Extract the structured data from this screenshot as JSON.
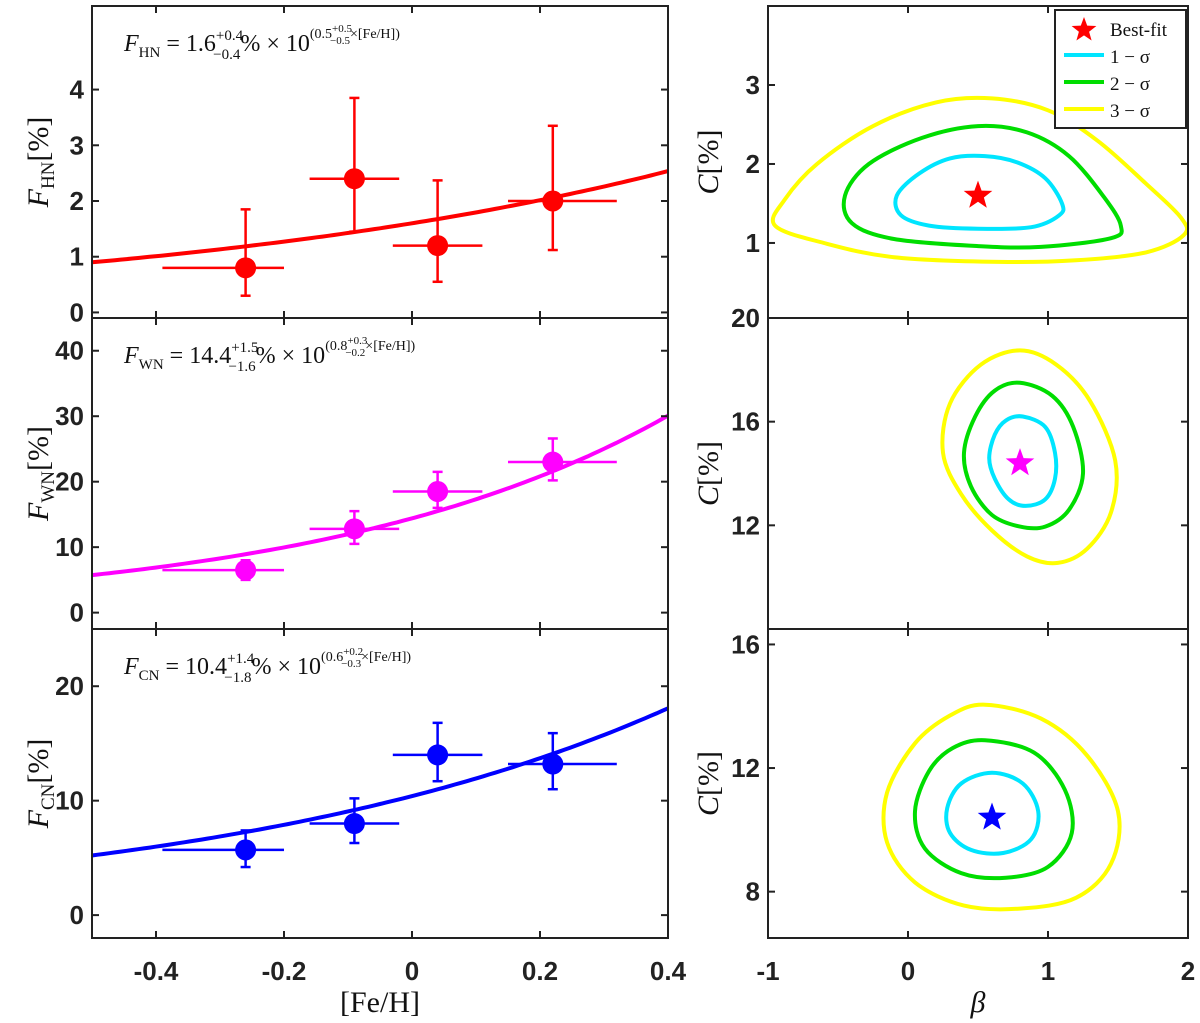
{
  "colors": {
    "red": "#ff0000",
    "magenta": "#ff00ff",
    "blue": "#0000ff",
    "cyan": "#00e5ff",
    "green": "#00dd00",
    "yellow": "#ffff00",
    "axis": "#222222"
  },
  "chart_data": [
    {
      "type": "scatter",
      "id": "hn_fraction",
      "color": "#ff0000",
      "xlabel": "[Fe/H]",
      "ylabel": "F_HN[%]",
      "ylabel_main": "F",
      "ylabel_sub": "HN",
      "ylabel_unit": "[%]",
      "xlim": [
        -0.5,
        0.4
      ],
      "ylim": [
        -0.1,
        5.5
      ],
      "xticks": [
        -0.4,
        -0.2,
        0,
        0.2,
        0.4
      ],
      "yticks": [
        0,
        1,
        2,
        3,
        4
      ],
      "annotation": {
        "main": "F",
        "sub": "HN",
        "eq": " = 1.6",
        "sup1": "+0.4",
        "sub1": "−0.4",
        "mid": "% × 10",
        "sup2": "(0.5",
        "supsup": "+0.5",
        "supsub": "−0.5",
        "tail": "×[Fe/H])"
      },
      "fit": {
        "C": 1.6,
        "beta": 0.5
      },
      "points": [
        {
          "x": -0.26,
          "y": 0.8,
          "xlo": -0.39,
          "xhi": -0.2,
          "ylo": 0.3,
          "yhi": 1.85
        },
        {
          "x": -0.09,
          "y": 2.4,
          "xlo": -0.16,
          "xhi": -0.02,
          "ylo": 1.45,
          "yhi": 3.85
        },
        {
          "x": 0.04,
          "y": 1.2,
          "xlo": -0.03,
          "xhi": 0.11,
          "ylo": 0.55,
          "yhi": 2.37
        },
        {
          "x": 0.22,
          "y": 2.0,
          "xlo": 0.15,
          "xhi": 0.32,
          "ylo": 1.12,
          "yhi": 3.35
        }
      ]
    },
    {
      "type": "scatter",
      "id": "wn_fraction",
      "color": "#ff00ff",
      "xlabel": "[Fe/H]",
      "ylabel": "F_WN[%]",
      "ylabel_main": "F",
      "ylabel_sub": "WN",
      "ylabel_unit": "[%]",
      "xlim": [
        -0.5,
        0.4
      ],
      "ylim": [
        -2.5,
        45
      ],
      "xticks": [
        -0.4,
        -0.2,
        0,
        0.2,
        0.4
      ],
      "yticks": [
        0,
        10,
        20,
        30,
        40
      ],
      "annotation": {
        "main": "F",
        "sub": "WN",
        "eq": " = 14.4",
        "sup1": "+1.5",
        "sub1": "−1.6",
        "mid": "% × 10",
        "sup2": "(0.8",
        "supsup": "+0.3",
        "supsub": "−0.2",
        "tail": "×[Fe/H])"
      },
      "fit": {
        "C": 14.4,
        "beta": 0.8
      },
      "points": [
        {
          "x": -0.26,
          "y": 6.5,
          "xlo": -0.39,
          "xhi": -0.2,
          "ylo": 5.0,
          "yhi": 8.0
        },
        {
          "x": -0.09,
          "y": 12.8,
          "xlo": -0.16,
          "xhi": -0.02,
          "ylo": 10.5,
          "yhi": 15.5
        },
        {
          "x": 0.04,
          "y": 18.5,
          "xlo": -0.03,
          "xhi": 0.11,
          "ylo": 16.0,
          "yhi": 21.5
        },
        {
          "x": 0.22,
          "y": 23.0,
          "xlo": 0.15,
          "xhi": 0.32,
          "ylo": 20.2,
          "yhi": 26.6
        }
      ]
    },
    {
      "type": "scatter",
      "id": "cn_fraction",
      "color": "#0000ff",
      "xlabel": "[Fe/H]",
      "ylabel": "F_CN[%]",
      "ylabel_main": "F",
      "ylabel_sub": "CN",
      "ylabel_unit": "[%]",
      "xlim": [
        -0.5,
        0.4
      ],
      "ylim": [
        -2.0,
        25
      ],
      "xticks": [
        -0.4,
        -0.2,
        0,
        0.2,
        0.4
      ],
      "xticklabels": [
        "-0.4",
        "-0.2",
        "0",
        "0.2",
        "0.4"
      ],
      "yticks": [
        0,
        10,
        20
      ],
      "annotation": {
        "main": "F",
        "sub": "CN",
        "eq": " = 10.4",
        "sup1": "+1.4",
        "sub1": "−1.8",
        "mid": "% × 10",
        "sup2": "(0.6",
        "supsup": "+0.2",
        "supsub": "−0.3",
        "tail": "×[Fe/H])"
      },
      "fit": {
        "C": 10.4,
        "beta": 0.6
      },
      "points": [
        {
          "x": -0.26,
          "y": 5.7,
          "xlo": -0.39,
          "xhi": -0.2,
          "ylo": 4.2,
          "yhi": 7.4
        },
        {
          "x": -0.09,
          "y": 8.0,
          "xlo": -0.16,
          "xhi": -0.02,
          "ylo": 6.3,
          "yhi": 10.2
        },
        {
          "x": 0.04,
          "y": 14.0,
          "xlo": -0.03,
          "xhi": 0.11,
          "ylo": 11.7,
          "yhi": 16.8
        },
        {
          "x": 0.22,
          "y": 13.2,
          "xlo": 0.15,
          "xhi": 0.32,
          "ylo": 11.0,
          "yhi": 15.9
        }
      ]
    },
    {
      "type": "contour",
      "id": "hn_confidence",
      "xlabel": "β",
      "ylabel": "C[%]",
      "xlim": [
        -1,
        2
      ],
      "ylim": [
        0.05,
        4.0
      ],
      "yticks": [
        1,
        2,
        3
      ],
      "best_fit": {
        "beta": 0.5,
        "C": 1.6,
        "color": "#ff0000"
      },
      "contours": [
        {
          "level": "1-σ",
          "color": "#00e5ff",
          "points": [
            [
              0.5,
              1.18
            ],
            [
              0.88,
              1.2
            ],
            [
              1.08,
              1.35
            ],
            [
              1.1,
              1.5
            ],
            [
              0.98,
              1.82
            ],
            [
              0.78,
              2.02
            ],
            [
              0.55,
              2.1
            ],
            [
              0.3,
              2.07
            ],
            [
              0.08,
              1.88
            ],
            [
              -0.08,
              1.6
            ],
            [
              -0.05,
              1.35
            ],
            [
              0.15,
              1.22
            ]
          ]
        },
        {
          "level": "2-σ",
          "color": "#00dd00",
          "points": [
            [
              0.5,
              0.96
            ],
            [
              0.95,
              0.95
            ],
            [
              1.45,
              1.06
            ],
            [
              1.52,
              1.22
            ],
            [
              1.4,
              1.58
            ],
            [
              1.15,
              2.1
            ],
            [
              0.85,
              2.4
            ],
            [
              0.5,
              2.48
            ],
            [
              0.1,
              2.33
            ],
            [
              -0.28,
              2.0
            ],
            [
              -0.45,
              1.6
            ],
            [
              -0.4,
              1.25
            ],
            [
              -0.1,
              1.05
            ]
          ]
        },
        {
          "level": "3-σ",
          "color": "#ffff00",
          "points": [
            [
              0.65,
              0.76
            ],
            [
              1.2,
              0.78
            ],
            [
              1.7,
              0.88
            ],
            [
              1.97,
              1.1
            ],
            [
              1.95,
              1.32
            ],
            [
              1.7,
              1.75
            ],
            [
              1.35,
              2.3
            ],
            [
              1.0,
              2.68
            ],
            [
              0.6,
              2.83
            ],
            [
              0.2,
              2.78
            ],
            [
              -0.25,
              2.48
            ],
            [
              -0.65,
              2.0
            ],
            [
              -0.88,
              1.55
            ],
            [
              -0.95,
              1.22
            ],
            [
              -0.6,
              1.0
            ],
            [
              -0.1,
              0.82
            ]
          ]
        }
      ]
    },
    {
      "type": "contour",
      "id": "wn_confidence",
      "xlabel": "β",
      "ylabel": "C[%]",
      "xlim": [
        -1,
        2
      ],
      "ylim": [
        8.0,
        20.0
      ],
      "yticks": [
        12,
        16,
        20
      ],
      "best_fit": {
        "beta": 0.8,
        "C": 14.4,
        "color": "#ff00ff"
      },
      "contours": [
        {
          "level": "1-σ",
          "color": "#00e5ff",
          "points": [
            [
              0.82,
              16.2
            ],
            [
              0.98,
              15.8
            ],
            [
              1.05,
              14.8
            ],
            [
              1.05,
              13.8
            ],
            [
              0.98,
              13.0
            ],
            [
              0.84,
              12.75
            ],
            [
              0.72,
              13.0
            ],
            [
              0.62,
              13.8
            ],
            [
              0.58,
              14.6
            ],
            [
              0.62,
              15.5
            ],
            [
              0.7,
              16.05
            ]
          ]
        },
        {
          "level": "2-σ",
          "color": "#00dd00",
          "points": [
            [
              0.8,
              17.5
            ],
            [
              1.03,
              17.0
            ],
            [
              1.18,
              15.8
            ],
            [
              1.25,
              14.0
            ],
            [
              1.15,
              12.6
            ],
            [
              0.98,
              11.95
            ],
            [
              0.8,
              11.95
            ],
            [
              0.6,
              12.4
            ],
            [
              0.45,
              13.5
            ],
            [
              0.4,
              14.8
            ],
            [
              0.48,
              16.2
            ],
            [
              0.62,
              17.2
            ]
          ]
        },
        {
          "level": "3-σ",
          "color": "#ffff00",
          "points": [
            [
              0.8,
              18.75
            ],
            [
              1.06,
              18.2
            ],
            [
              1.3,
              16.8
            ],
            [
              1.48,
              14.5
            ],
            [
              1.45,
              12.5
            ],
            [
              1.28,
              11.1
            ],
            [
              1.07,
              10.55
            ],
            [
              0.85,
              10.8
            ],
            [
              0.6,
              11.8
            ],
            [
              0.38,
              13.2
            ],
            [
              0.25,
              14.8
            ],
            [
              0.3,
              16.7
            ],
            [
              0.52,
              18.2
            ]
          ]
        }
      ]
    },
    {
      "type": "contour",
      "id": "cn_confidence",
      "xlabel": "β",
      "ylabel": "C[%]",
      "xlim": [
        -1,
        2
      ],
      "xticks": [
        -1,
        0,
        1,
        2
      ],
      "ylim": [
        6.5,
        16.5
      ],
      "yticks": [
        8,
        12,
        16
      ],
      "best_fit": {
        "beta": 0.6,
        "C": 10.4,
        "color": "#0000ff"
      },
      "contours": [
        {
          "level": "1-σ",
          "color": "#00e5ff",
          "points": [
            [
              0.6,
              11.85
            ],
            [
              0.82,
              11.5
            ],
            [
              0.93,
              10.6
            ],
            [
              0.88,
              9.7
            ],
            [
              0.68,
              9.25
            ],
            [
              0.45,
              9.35
            ],
            [
              0.3,
              9.9
            ],
            [
              0.28,
              10.7
            ],
            [
              0.38,
              11.5
            ]
          ]
        },
        {
          "level": "2-σ",
          "color": "#00dd00",
          "points": [
            [
              0.55,
              12.9
            ],
            [
              0.9,
              12.5
            ],
            [
              1.12,
              11.3
            ],
            [
              1.17,
              9.9
            ],
            [
              1.0,
              8.8
            ],
            [
              0.7,
              8.45
            ],
            [
              0.38,
              8.6
            ],
            [
              0.12,
              9.4
            ],
            [
              0.05,
              10.6
            ],
            [
              0.15,
              11.9
            ],
            [
              0.32,
              12.65
            ]
          ]
        },
        {
          "level": "3-σ",
          "color": "#ffff00",
          "points": [
            [
              0.55,
              14.05
            ],
            [
              0.95,
              13.6
            ],
            [
              1.28,
              12.4
            ],
            [
              1.5,
              10.6
            ],
            [
              1.45,
              8.9
            ],
            [
              1.2,
              7.8
            ],
            [
              0.8,
              7.45
            ],
            [
              0.4,
              7.55
            ],
            [
              0.05,
              8.3
            ],
            [
              -0.15,
              9.6
            ],
            [
              -0.15,
              11.2
            ],
            [
              0.05,
              12.8
            ],
            [
              0.3,
              13.7
            ]
          ]
        }
      ]
    }
  ],
  "legend": {
    "items": [
      {
        "label": "Best-fit",
        "kind": "star",
        "color": "#ff0000"
      },
      {
        "label": "1 − σ",
        "kind": "line",
        "color": "#00e5ff"
      },
      {
        "label": "2 − σ",
        "kind": "line",
        "color": "#00dd00"
      },
      {
        "label": "3 − σ",
        "kind": "line",
        "color": "#ffff00"
      }
    ]
  }
}
